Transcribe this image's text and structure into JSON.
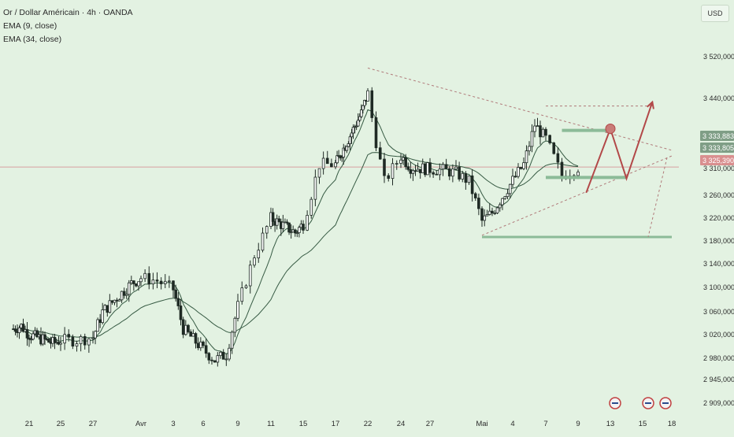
{
  "header": {
    "title": "Or / Dollar Américain · 4h · OANDA",
    "indicators": [
      "EMA (9, close)",
      "EMA (34, close)"
    ]
  },
  "currency_button": "USD",
  "colors": {
    "background": "#e3f2e2",
    "candle": "#1f2a24",
    "ema9": "#365a43",
    "ema34": "#365a43",
    "pattern_lines": "#b07a7a",
    "projection": "#b24848",
    "support_zone": "#8cbb98",
    "price_line": "#d7a0a0",
    "price_badge": "#d98f8f"
  },
  "chart_data": {
    "type": "candlestick",
    "symbol": "XAU/USD",
    "timeframe": "4h",
    "x_ticks": [
      "21",
      "25",
      "27",
      "Avr",
      "3",
      "6",
      "9",
      "11",
      "15",
      "17",
      "22",
      "24",
      "27",
      "Mai",
      "4",
      "7",
      "9",
      "13",
      "15",
      "18"
    ],
    "y_ticks": [
      "3 520,000",
      "3 440,000",
      "3 310,000",
      "3 260,000",
      "3 220,000",
      "3 180,000",
      "3 140,000",
      "3 100,000",
      "3 060,000",
      "3 020,000",
      "2 980,000",
      "2 945,000",
      "2 909,000"
    ],
    "price_labels": [
      {
        "text": "3 333,883",
        "value": 3333.883
      },
      {
        "text": "3 333,805",
        "value": 3333.805
      },
      {
        "text": "3 325,390",
        "value": 3325.39,
        "current": true
      }
    ],
    "ylim": [
      2900,
      3580
    ],
    "close_path": [
      {
        "x": "Mar 19",
        "y": 3040
      },
      {
        "x": "Mar 20",
        "y": 3045
      },
      {
        "x": "Mar 21",
        "y": 3030
      },
      {
        "x": "Mar 24",
        "y": 3015
      },
      {
        "x": "Mar 25",
        "y": 3020
      },
      {
        "x": "Mar 26",
        "y": 3020
      },
      {
        "x": "Mar 27",
        "y": 3025
      },
      {
        "x": "Mar 28",
        "y": 3070
      },
      {
        "x": "Mar 31",
        "y": 3120
      },
      {
        "x": "Apr 1",
        "y": 3130
      },
      {
        "x": "Apr 2",
        "y": 3125
      },
      {
        "x": "Apr 3",
        "y": 3110
      },
      {
        "x": "Apr 4",
        "y": 3040
      },
      {
        "x": "Apr 7",
        "y": 2985
      },
      {
        "x": "Apr 8",
        "y": 2995
      },
      {
        "x": "Apr 9",
        "y": 3080
      },
      {
        "x": "Apr 10",
        "y": 3170
      },
      {
        "x": "Apr 11",
        "y": 3235
      },
      {
        "x": "Apr 14",
        "y": 3210
      },
      {
        "x": "Apr 15",
        "y": 3225
      },
      {
        "x": "Apr 16",
        "y": 3330
      },
      {
        "x": "Apr 17",
        "y": 3330
      },
      {
        "x": "Apr 21",
        "y": 3420
      },
      {
        "x": "Apr 22",
        "y": 3455
      },
      {
        "x": "Apr 22b",
        "y": 3370
      },
      {
        "x": "Apr 23",
        "y": 3300
      },
      {
        "x": "Apr 24",
        "y": 3345
      },
      {
        "x": "Apr 25",
        "y": 3325
      },
      {
        "x": "Apr 28",
        "y": 3320
      },
      {
        "x": "Apr 29",
        "y": 3315
      },
      {
        "x": "Apr 30",
        "y": 3300
      },
      {
        "x": "May 1",
        "y": 3230
      },
      {
        "x": "May 2",
        "y": 3245
      },
      {
        "x": "May 5",
        "y": 3330
      },
      {
        "x": "May 6",
        "y": 3400
      },
      {
        "x": "May 7",
        "y": 3375
      },
      {
        "x": "May 8",
        "y": 3310
      },
      {
        "x": "May 9",
        "y": 3325
      }
    ],
    "annotations": {
      "upper_trendline": {
        "from": {
          "x": "Apr 22",
          "y": 3500
        },
        "to": {
          "x": "May 18",
          "y": 3355
        }
      },
      "lower_trendline": {
        "from": {
          "x": "May 1",
          "y": 3205
        },
        "to": {
          "x": "May 18",
          "y": 3345
        }
      },
      "flat_dashed_line": {
        "from": {
          "x": "May 7",
          "y": 3433
        },
        "to": {
          "x": "May 16",
          "y": 3433
        }
      },
      "support_level": {
        "x_from": "May 1",
        "x_to": "May 18",
        "y": 3202
      },
      "zone_upper": {
        "x_from": "May 8",
        "x_to": "May 13",
        "y": 3390
      },
      "zone_lower": {
        "x_from": "May 7",
        "x_to": "May 14",
        "y": 3307
      },
      "target_circle": {
        "x": "May 13",
        "y": 3393
      },
      "projection_path": [
        {
          "x": "May 10",
          "y": 3280
        },
        {
          "x": "May 13",
          "y": 3393
        },
        {
          "x": "May 14",
          "y": 3305
        },
        {
          "x": "May 16",
          "y": 3440
        }
      ]
    }
  }
}
